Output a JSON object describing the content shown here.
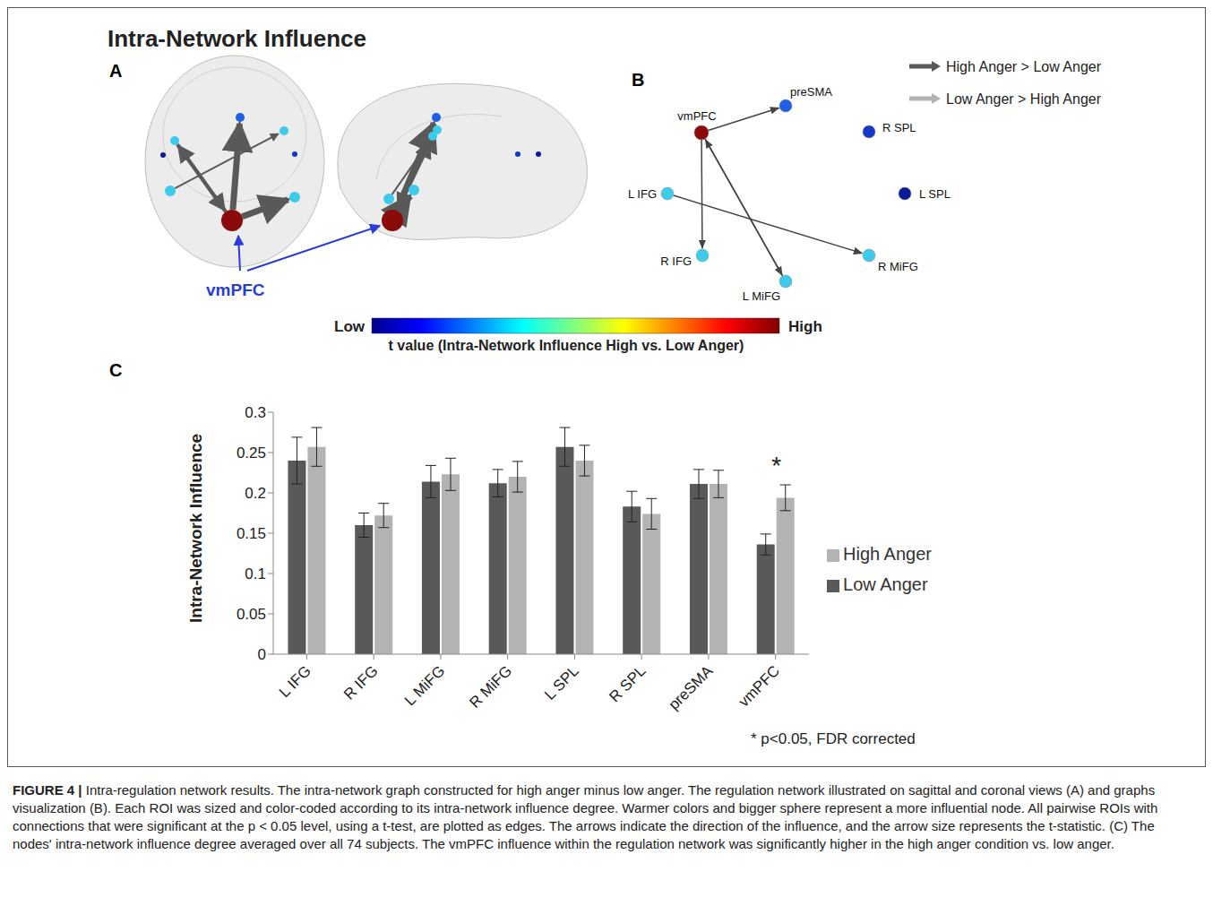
{
  "title": "Intra-Network Influence",
  "panel_a": {
    "letter": "A",
    "label": "vmPFC"
  },
  "panel_b": {
    "letter": "B",
    "nodes": [
      {
        "label": "vmPFC",
        "color": "#8b0a0a"
      },
      {
        "label": "preSMA",
        "color": "#1f5fe6"
      },
      {
        "label": "R SPL",
        "color": "#1437c4"
      },
      {
        "label": "L SPL",
        "color": "#0a1c96"
      },
      {
        "label": "L IFG",
        "color": "#3ccbea"
      },
      {
        "label": "R IFG",
        "color": "#3ccbea"
      },
      {
        "label": "L MiFG",
        "color": "#3ccbea"
      },
      {
        "label": "R MiFG",
        "color": "#3ccbea"
      }
    ],
    "edges": [
      {
        "from": "vmPFC",
        "to": "preSMA"
      },
      {
        "from": "vmPFC",
        "to": "R IFG"
      },
      {
        "from": "vmPFC",
        "to": "L MiFG"
      },
      {
        "from": "L MiFG",
        "to": "vmPFC"
      },
      {
        "from": "L IFG",
        "to": "R MiFG"
      }
    ],
    "legend_items": [
      {
        "label": "High Anger > Low Anger",
        "color": "#595959"
      },
      {
        "label": "Low Anger > High Anger",
        "color": "#b3b3b3"
      }
    ]
  },
  "colorbar": {
    "low_label": "Low",
    "high_label": "High",
    "title": "t value (Intra-Network Influence High vs. Low Anger)"
  },
  "panel_c": {
    "letter": "C",
    "footnote": "* p<0.05, FDR corrected"
  },
  "chart_data": {
    "type": "bar",
    "categories": [
      "L IFG",
      "R IFG",
      "L MiFG",
      "R MiFG",
      "L SPL",
      "R SPL",
      "preSMA",
      "vmPFC"
    ],
    "series": [
      {
        "name": "Low Anger",
        "color": "#595959",
        "values": [
          0.24,
          0.16,
          0.214,
          0.212,
          0.257,
          0.183,
          0.211,
          0.136
        ],
        "errors": [
          0.029,
          0.015,
          0.02,
          0.017,
          0.024,
          0.019,
          0.018,
          0.013
        ]
      },
      {
        "name": "High Anger",
        "color": "#b3b3b3",
        "values": [
          0.257,
          0.172,
          0.223,
          0.22,
          0.24,
          0.174,
          0.211,
          0.194
        ],
        "errors": [
          0.024,
          0.015,
          0.02,
          0.019,
          0.019,
          0.019,
          0.017,
          0.016
        ]
      }
    ],
    "ylabel": "Intra-Network Influence",
    "ylim": [
      0,
      0.3
    ],
    "yticks": [
      0,
      0.05,
      0.1,
      0.15,
      0.2,
      0.25,
      0.3
    ],
    "grid": false,
    "legend": "right",
    "annotations": [
      {
        "category": "vmPFC",
        "text": "*"
      }
    ]
  },
  "caption": {
    "label": "FIGURE 4 |",
    "text": "Intra-regulation network results. The intra-network graph constructed for high anger minus low anger. The regulation network illustrated on sagittal and coronal views (A) and graphs visualization (B). Each ROI was sized and color-coded according to its intra-network influence degree. Warmer colors and bigger sphere represent a more influential node. All pairwise ROIs with connections that were significant at the p < 0.05 level, using a t-test, are plotted as edges. The arrows indicate the direction of the influence, and the arrow size represents the t-statistic. (C) The nodes' intra-network influence degree averaged over all 74 subjects. The vmPFC influence within the regulation network was significantly higher in the high anger condition vs. low anger."
  }
}
